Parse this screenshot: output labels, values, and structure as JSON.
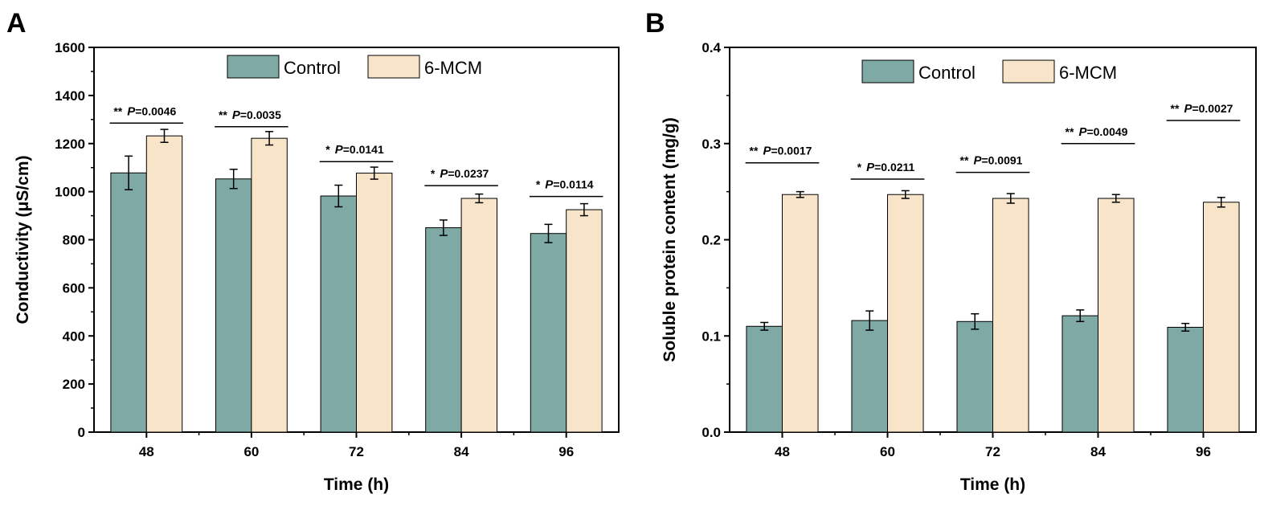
{
  "chart_data": [
    {
      "type": "bar",
      "panel": "A",
      "categories": [
        "48",
        "60",
        "72",
        "84",
        "96"
      ],
      "series": [
        {
          "name": "Control",
          "values": [
            1078,
            1053,
            982,
            850,
            826
          ],
          "errors": [
            70,
            40,
            45,
            32,
            38
          ],
          "color": "#7ea9a5"
        },
        {
          "name": "6-MCM",
          "values": [
            1232,
            1222,
            1077,
            972,
            925
          ],
          "errors": [
            27,
            28,
            25,
            18,
            25
          ],
          "color": "#f8e4c9"
        }
      ],
      "xlabel": "Time (h)",
      "ylabel": "Conductivity (μS/cm)",
      "ylim": [
        0,
        1600
      ],
      "yticks": [
        "0",
        "200",
        "400",
        "600",
        "800",
        "1000",
        "1200",
        "1400",
        "1600"
      ],
      "significance": [
        {
          "stars": "**",
          "p": "=0.0046",
          "y": 1285
        },
        {
          "stars": "**",
          "p": "=0.0035",
          "y": 1270
        },
        {
          "stars": "*",
          "p": "=0.0141",
          "y": 1125
        },
        {
          "stars": "*",
          "p": "=0.0237",
          "y": 1025
        },
        {
          "stars": "*",
          "p": "=0.0114",
          "y": 980
        }
      ],
      "legend": "top-center",
      "grid": false
    },
    {
      "type": "bar",
      "panel": "B",
      "categories": [
        "48",
        "60",
        "72",
        "84",
        "96"
      ],
      "series": [
        {
          "name": "Control",
          "values": [
            0.11,
            0.116,
            0.115,
            0.121,
            0.109
          ],
          "errors": [
            0.004,
            0.01,
            0.008,
            0.006,
            0.004
          ],
          "color": "#7ea9a5"
        },
        {
          "name": "6-MCM",
          "values": [
            0.247,
            0.247,
            0.243,
            0.243,
            0.239
          ],
          "errors": [
            0.003,
            0.004,
            0.005,
            0.004,
            0.005
          ],
          "color": "#f8e4c9"
        }
      ],
      "xlabel": "Time (h)",
      "ylabel": "Soluble protein content (mg/g)",
      "ylim": [
        0,
        0.4
      ],
      "yticks": [
        "0.0",
        "0.1",
        "0.2",
        "0.3",
        "0.4"
      ],
      "significance": [
        {
          "stars": "**",
          "p": "=0.0017",
          "y": 0.28
        },
        {
          "stars": "*",
          "p": "=0.0211",
          "y": 0.263
        },
        {
          "stars": "**",
          "p": "=0.0091",
          "y": 0.27
        },
        {
          "stars": "**",
          "p": "=0.0049",
          "y": 0.3
        },
        {
          "stars": "**",
          "p": "=0.0027",
          "y": 0.324
        }
      ],
      "legend": "top-center",
      "grid": false
    }
  ],
  "p_symbol": "P"
}
